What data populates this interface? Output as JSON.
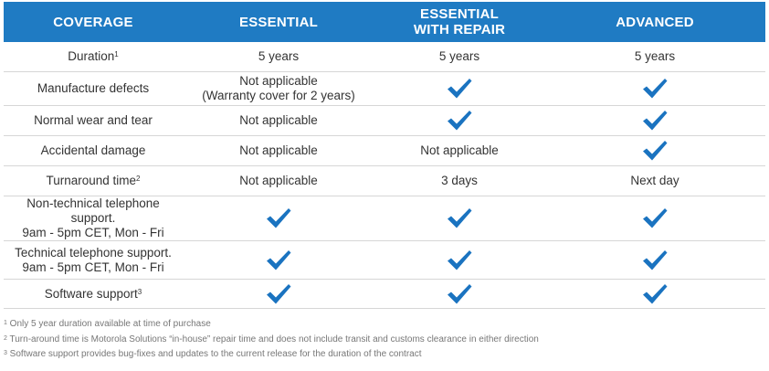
{
  "headers": [
    "COVERAGE",
    "ESSENTIAL",
    "ESSENTIAL\nWITH REPAIR",
    "ADVANCED"
  ],
  "check_color": "#1a73c0",
  "rows": [
    {
      "label": "Duration",
      "sup": "1",
      "cells": [
        {
          "text": "5 years"
        },
        {
          "text": "5 years"
        },
        {
          "text": "5 years"
        }
      ]
    },
    {
      "label": "Manufacture defects",
      "sup": "",
      "cells": [
        {
          "text": "Not applicable\n(Warranty cover for 2 years)"
        },
        {
          "check": true
        },
        {
          "check": true
        }
      ]
    },
    {
      "label": "Normal wear and tear",
      "sup": "",
      "cells": [
        {
          "text": "Not applicable"
        },
        {
          "check": true
        },
        {
          "check": true
        }
      ]
    },
    {
      "label": "Accidental damage",
      "sup": "",
      "cells": [
        {
          "text": "Not applicable"
        },
        {
          "text": "Not applicable"
        },
        {
          "check": true
        }
      ]
    },
    {
      "label": "Turnaround time",
      "sup": "2",
      "cells": [
        {
          "text": "Not applicable"
        },
        {
          "text": "3 days"
        },
        {
          "text": "Next day"
        }
      ]
    },
    {
      "label": "Non-technical telephone support.\n9am - 5pm CET, Mon - Fri",
      "sup": "",
      "cells": [
        {
          "check": true
        },
        {
          "check": true
        },
        {
          "check": true
        }
      ]
    },
    {
      "label": "Technical telephone support.\n9am - 5pm CET, Mon - Fri",
      "sup": "",
      "cells": [
        {
          "check": true
        },
        {
          "check": true
        },
        {
          "check": true
        }
      ]
    },
    {
      "label": "Software support",
      "sup": "3",
      "cells": [
        {
          "check": true
        },
        {
          "check": true
        },
        {
          "check": true
        }
      ]
    }
  ],
  "footnotes": [
    {
      "num": "1",
      "text": "Only 5 year duration available at time of purchase"
    },
    {
      "num": "2",
      "text": "Turn-around time is Motorola Solutions “in-house” repair time and does not include transit and customs clearance in either direction"
    },
    {
      "num": "3",
      "text": "Software support provides bug-fixes and updates to the current release for the duration of the contract"
    }
  ]
}
